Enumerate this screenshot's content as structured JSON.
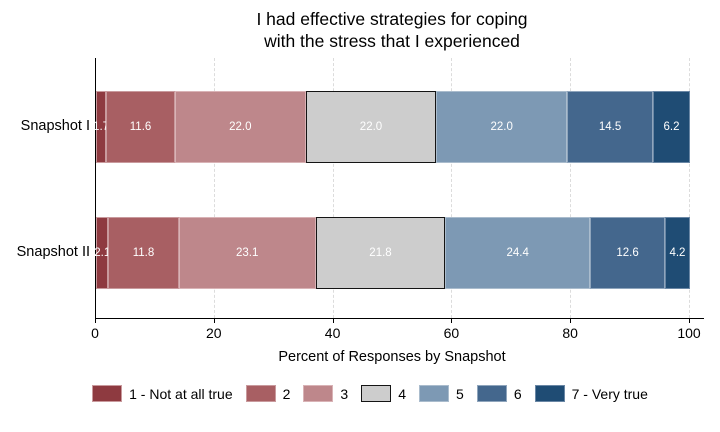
{
  "chart_data": {
    "type": "bar",
    "orientation": "horizontal",
    "stacked": true,
    "title_lines": [
      "I had effective strategies for coping",
      "with the stress that I experienced"
    ],
    "xlabel": "Percent of Responses by Snapshot",
    "xlim": [
      0,
      100
    ],
    "xticks": [
      0,
      20,
      40,
      60,
      80,
      100
    ],
    "grid": "vertical-dashed",
    "legend_position": "bottom",
    "categories": [
      "Snapshot I",
      "Snapshot II"
    ],
    "series": [
      {
        "name": "1 - Not at all true",
        "color": "#8E3A40",
        "border": "#C99A9D",
        "values": [
          1.7,
          2.1
        ],
        "labels": [
          "1.7",
          "2.1"
        ]
      },
      {
        "name": "2",
        "color": "#A85F63",
        "border": "#C99A9D",
        "values": [
          11.6,
          11.8
        ],
        "labels": [
          "11.6",
          "11.8"
        ]
      },
      {
        "name": "3",
        "color": "#BE878B",
        "border": "#D9B3B6",
        "values": [
          22.0,
          23.1
        ],
        "labels": [
          "22.0",
          "23.1"
        ]
      },
      {
        "name": "4",
        "color": "#CDCDCD",
        "border": "#141414",
        "values": [
          22.0,
          21.8
        ],
        "labels": [
          "22.0",
          "21.8"
        ]
      },
      {
        "name": "5",
        "color": "#7D99B4",
        "border": "#AABCCD",
        "values": [
          22.0,
          24.4
        ],
        "labels": [
          "22.0",
          "24.4"
        ]
      },
      {
        "name": "6",
        "color": "#44678D",
        "border": "#8FA5BC",
        "values": [
          14.5,
          12.6
        ],
        "labels": [
          "14.5",
          "12.6"
        ]
      },
      {
        "name": "7 - Very true",
        "color": "#1F4C74",
        "border": "#6A87A5",
        "values": [
          6.2,
          4.2
        ],
        "labels": [
          "6.2",
          "4.2"
        ]
      }
    ]
  }
}
